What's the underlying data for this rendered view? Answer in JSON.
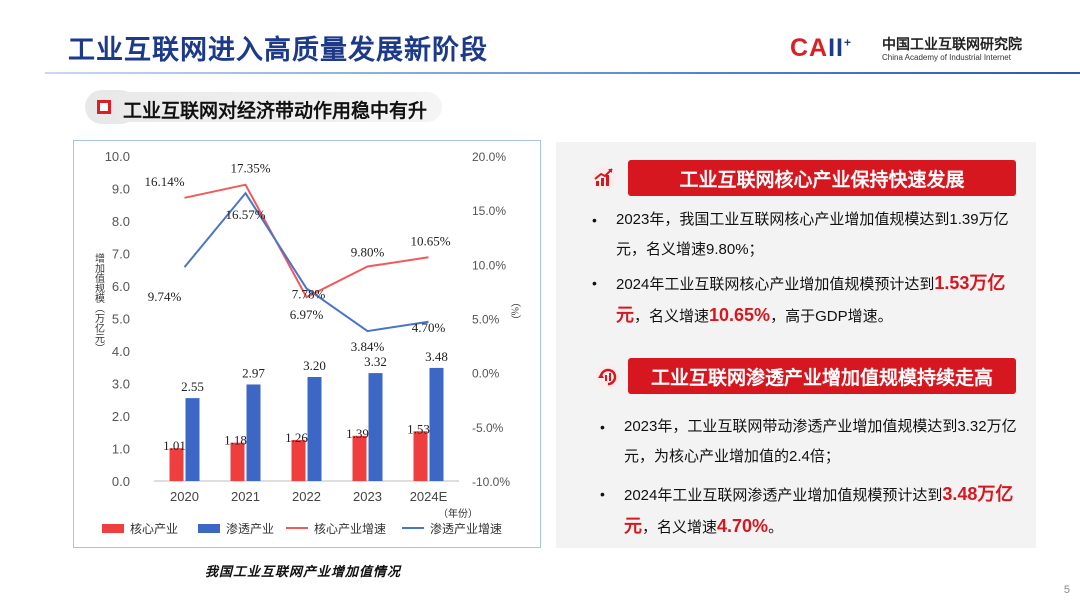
{
  "slide": {
    "title": "工业互联网进入高质量发展新阶段",
    "logo": {
      "mark_c": "CA",
      "mark_rest": "II",
      "plus": "+",
      "name_cn": "中国工业互联网研究院",
      "name_en": "China Academy of Industrial Internet"
    },
    "section": "工业互联网对经济带动作用稳中有升",
    "page_number": "5",
    "chart_caption": "我国工业互联网产业增加值情况"
  },
  "chart_data": {
    "type": "bar+line",
    "categories": [
      "2020",
      "2021",
      "2022",
      "2023",
      "2024E"
    ],
    "x_unit": "（年份）",
    "left_axis": {
      "label": "增加值规模（万亿元）",
      "ticks": [
        "0.0",
        "1.0",
        "2.0",
        "3.0",
        "4.0",
        "5.0",
        "6.0",
        "7.0",
        "8.0",
        "9.0",
        "10.0"
      ],
      "ylim": [
        0,
        10
      ]
    },
    "right_axis": {
      "label": "（%）",
      "ticks": [
        "-10.0%",
        "-5.0%",
        "0.0%",
        "5.0%",
        "10.0%",
        "15.0%",
        "20.0%"
      ],
      "ylim": [
        -10,
        20
      ]
    },
    "bar_series": [
      {
        "name": "核心产业",
        "color": "#ef3e3e",
        "values": [
          1.01,
          1.18,
          1.26,
          1.39,
          1.53
        ],
        "labels": [
          "1.01",
          "1.18",
          "1.26",
          "1.39",
          "1.53"
        ]
      },
      {
        "name": "渗透产业",
        "color": "#3c67c4",
        "values": [
          2.55,
          2.97,
          3.2,
          3.32,
          3.48
        ],
        "labels": [
          "2.55",
          "2.97",
          "3.20",
          "3.32",
          "3.48"
        ]
      }
    ],
    "line_series": [
      {
        "name": "核心产业增速",
        "color": "#ef5a5a",
        "values": [
          16.14,
          17.35,
          6.97,
          9.8,
          10.65
        ],
        "labels": [
          "16.14%",
          "17.35%",
          "6.97%",
          "9.80%",
          "10.65%"
        ]
      },
      {
        "name": "渗透产业增速",
        "color": "#4a74c9",
        "values": [
          9.74,
          16.57,
          7.78,
          3.84,
          4.7
        ],
        "labels": [
          "9.74%",
          "16.57%",
          "7.78%",
          "3.84%",
          "4.70%"
        ]
      }
    ]
  },
  "panel": {
    "banner1": "工业互联网核心产业保持快速发展",
    "banner2": "工业互联网渗透产业增加值规模持续走高",
    "b1_text": "2023年，我国工业互联网核心产业增加值规模达到1.39万亿元，名义增速9.80%；",
    "b2_pre": "2024年工业互联网核心产业增加值规模预计达到",
    "b2_hl1": "1.53万亿元",
    "b2_mid": "，名义增速",
    "b2_hl2": "10.65%",
    "b2_post": "，高于GDP增速。",
    "b3_text": "2023年，工业互联网带动渗透产业增加值规模达到3.32万亿元，为核心产业增加值的2.4倍；",
    "b4_pre": "2024年工业互联网渗透产业增加值规模预计达到",
    "b4_hl1": "3.48万亿元",
    "b4_mid": "，名义增速",
    "b4_hl2": "4.70%",
    "b4_post": "。",
    "bullet_mark": "•"
  },
  "colors": {
    "accent_red": "#d7171f",
    "title_blue": "#1d3a8a"
  }
}
